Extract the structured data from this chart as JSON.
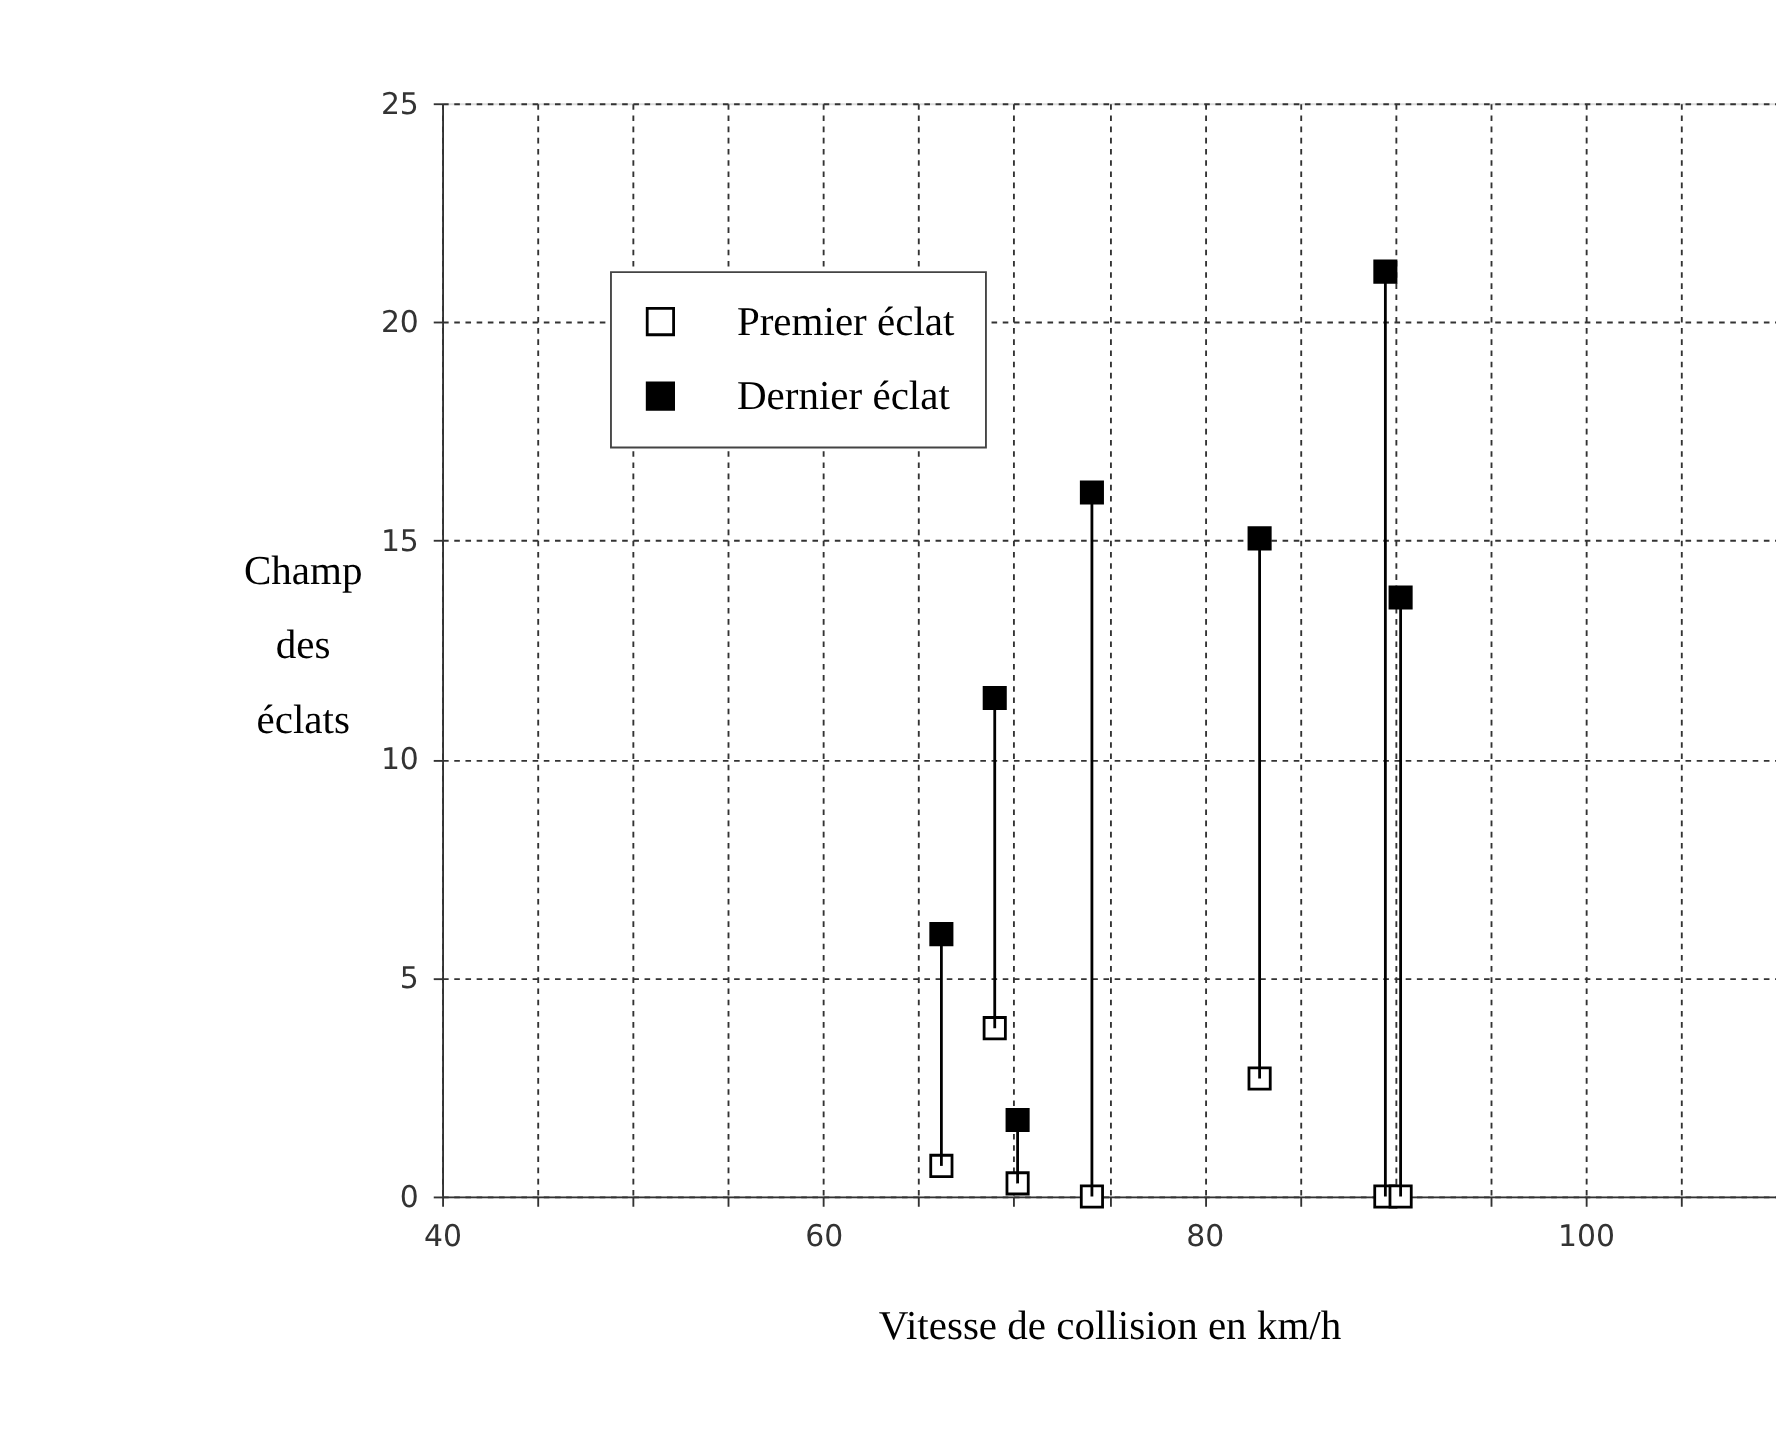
{
  "chart_data": {
    "type": "scatter",
    "xlabel": "Vitesse de collision en km/h",
    "ylabel": "Champ des éclats",
    "x": [
      66.2,
      69.0,
      70.2,
      74.1,
      82.9,
      89.5,
      90.3
    ],
    "series": [
      {
        "name": "Premier éclat",
        "color": "#ffffff",
        "values": [
          0.7,
          3.85,
          0.3,
          0,
          2.7,
          0,
          0
        ]
      },
      {
        "name": "Dernier éclat",
        "color": "#000000",
        "values": [
          6.0,
          11.4,
          1.75,
          16.1,
          15.05,
          21.15,
          13.7
        ],
        "errors": [
          [
            0.7,
            6.0
          ],
          [
            3.85,
            11.4
          ],
          [
            0.3,
            1.75
          ],
          [
            0,
            16.1
          ],
          [
            2.7,
            15.05
          ],
          [
            0,
            21.15
          ],
          [
            0,
            13.7
          ]
        ]
      }
    ],
    "xlim": [
      40,
      110
    ],
    "xticks": [
      40,
      {
        "value": 45,
        "label": null
      },
      {
        "value": 50,
        "label": null
      },
      {
        "value": 55,
        "label": null
      },
      60,
      {
        "value": 65,
        "label": null
      },
      {
        "value": 70,
        "label": null
      },
      {
        "value": 75,
        "label": null
      },
      80,
      {
        "value": 85,
        "label": null
      },
      {
        "value": 90,
        "label": null
      },
      {
        "value": 95,
        "label": null
      },
      100,
      {
        "value": 105,
        "label": null
      }
    ],
    "ylim": [
      0,
      25
    ],
    "yticks": [
      0,
      5,
      10,
      15,
      20,
      25
    ],
    "grid": true,
    "legend": "top left",
    "marker": "square",
    "line_style": "solid"
  }
}
